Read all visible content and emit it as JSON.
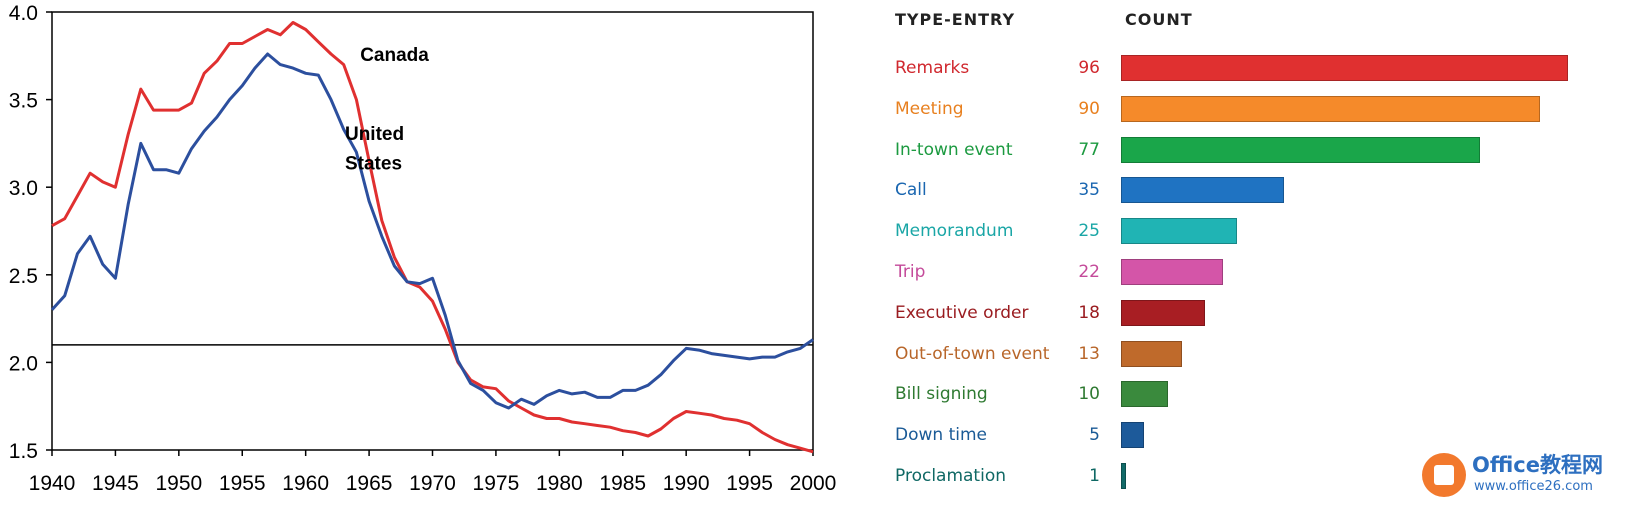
{
  "chart_data": [
    {
      "type": "line",
      "title": "",
      "xlabel": "",
      "ylabel": "",
      "xlim": [
        1940,
        2000
      ],
      "ylim": [
        1.5,
        4.0
      ],
      "x_ticks": [
        "1940",
        "1945",
        "1950",
        "1955",
        "1960",
        "1965",
        "1970",
        "1975",
        "1980",
        "1985",
        "1990",
        "1995",
        "2000"
      ],
      "y_ticks": [
        "4.0",
        "3.5",
        "3.0",
        "2.5",
        "2.0",
        "1.5"
      ],
      "reference_line": 2.1,
      "grid": false,
      "series": [
        {
          "name": "Canada",
          "color": "#e03030",
          "points": [
            [
              1940,
              2.78
            ],
            [
              1941,
              2.82
            ],
            [
              1942,
              2.95
            ],
            [
              1943,
              3.08
            ],
            [
              1944,
              3.03
            ],
            [
              1945,
              3.0
            ],
            [
              1946,
              3.3
            ],
            [
              1947,
              3.56
            ],
            [
              1948,
              3.44
            ],
            [
              1949,
              3.44
            ],
            [
              1950,
              3.44
            ],
            [
              1951,
              3.48
            ],
            [
              1952,
              3.65
            ],
            [
              1953,
              3.72
            ],
            [
              1954,
              3.82
            ],
            [
              1955,
              3.82
            ],
            [
              1956,
              3.86
            ],
            [
              1957,
              3.9
            ],
            [
              1958,
              3.87
            ],
            [
              1959,
              3.94
            ],
            [
              1960,
              3.9
            ],
            [
              1961,
              3.83
            ],
            [
              1962,
              3.76
            ],
            [
              1963,
              3.7
            ],
            [
              1964,
              3.5
            ],
            [
              1965,
              3.15
            ],
            [
              1966,
              2.81
            ],
            [
              1967,
              2.6
            ],
            [
              1968,
              2.46
            ],
            [
              1969,
              2.43
            ],
            [
              1970,
              2.35
            ],
            [
              1971,
              2.19
            ],
            [
              1972,
              2.0
            ],
            [
              1973,
              1.9
            ],
            [
              1974,
              1.86
            ],
            [
              1975,
              1.85
            ],
            [
              1976,
              1.78
            ],
            [
              1977,
              1.74
            ],
            [
              1978,
              1.7
            ],
            [
              1979,
              1.68
            ],
            [
              1980,
              1.68
            ],
            [
              1981,
              1.66
            ],
            [
              1982,
              1.65
            ],
            [
              1983,
              1.64
            ],
            [
              1984,
              1.63
            ],
            [
              1985,
              1.61
            ],
            [
              1986,
              1.6
            ],
            [
              1987,
              1.58
            ],
            [
              1988,
              1.62
            ],
            [
              1989,
              1.68
            ],
            [
              1990,
              1.72
            ],
            [
              1991,
              1.71
            ],
            [
              1992,
              1.7
            ],
            [
              1993,
              1.68
            ],
            [
              1994,
              1.67
            ],
            [
              1995,
              1.65
            ],
            [
              1996,
              1.6
            ],
            [
              1997,
              1.56
            ],
            [
              1998,
              1.53
            ],
            [
              1999,
              1.51
            ],
            [
              2000,
              1.49
            ]
          ]
        },
        {
          "name": "United States",
          "color": "#2c4f9e",
          "points": [
            [
              1940,
              2.3
            ],
            [
              1941,
              2.38
            ],
            [
              1942,
              2.62
            ],
            [
              1943,
              2.72
            ],
            [
              1944,
              2.56
            ],
            [
              1945,
              2.48
            ],
            [
              1946,
              2.9
            ],
            [
              1947,
              3.25
            ],
            [
              1948,
              3.1
            ],
            [
              1949,
              3.1
            ],
            [
              1950,
              3.08
            ],
            [
              1951,
              3.22
            ],
            [
              1952,
              3.32
            ],
            [
              1953,
              3.4
            ],
            [
              1954,
              3.5
            ],
            [
              1955,
              3.58
            ],
            [
              1956,
              3.68
            ],
            [
              1957,
              3.76
            ],
            [
              1958,
              3.7
            ],
            [
              1959,
              3.68
            ],
            [
              1960,
              3.65
            ],
            [
              1961,
              3.64
            ],
            [
              1962,
              3.5
            ],
            [
              1963,
              3.33
            ],
            [
              1964,
              3.2
            ],
            [
              1965,
              2.92
            ],
            [
              1966,
              2.72
            ],
            [
              1967,
              2.55
            ],
            [
              1968,
              2.46
            ],
            [
              1969,
              2.45
            ],
            [
              1970,
              2.48
            ],
            [
              1971,
              2.27
            ],
            [
              1972,
              2.01
            ],
            [
              1973,
              1.88
            ],
            [
              1974,
              1.84
            ],
            [
              1975,
              1.77
            ],
            [
              1976,
              1.74
            ],
            [
              1977,
              1.79
            ],
            [
              1978,
              1.76
            ],
            [
              1979,
              1.81
            ],
            [
              1980,
              1.84
            ],
            [
              1981,
              1.82
            ],
            [
              1982,
              1.83
            ],
            [
              1983,
              1.8
            ],
            [
              1984,
              1.8
            ],
            [
              1985,
              1.84
            ],
            [
              1986,
              1.84
            ],
            [
              1987,
              1.87
            ],
            [
              1988,
              1.93
            ],
            [
              1989,
              2.01
            ],
            [
              1990,
              2.08
            ],
            [
              1991,
              2.07
            ],
            [
              1992,
              2.05
            ],
            [
              1993,
              2.04
            ],
            [
              1994,
              2.03
            ],
            [
              1995,
              2.02
            ],
            [
              1996,
              2.03
            ],
            [
              1997,
              2.03
            ],
            [
              1998,
              2.06
            ],
            [
              1999,
              2.08
            ],
            [
              2000,
              2.13
            ]
          ]
        }
      ],
      "annotations": [
        {
          "text": "Canada",
          "x": 1964.3,
          "y": 3.72
        },
        {
          "text": "United",
          "x": 1963.1,
          "y": 3.27
        },
        {
          "text": "States",
          "x": 1963.1,
          "y": 3.1
        }
      ]
    },
    {
      "type": "bar",
      "orientation": "horizontal",
      "column_headers": {
        "label": "TYPE-ENTRY",
        "value": "COUNT"
      },
      "categories": [
        "Remarks",
        "Meeting",
        "In-town event",
        "Call",
        "Memorandum",
        "Trip",
        "Executive order",
        "Out-of-town event",
        "Bill signing",
        "Down time",
        "Proclamation"
      ],
      "values": [
        96,
        90,
        77,
        35,
        25,
        22,
        18,
        13,
        10,
        5,
        1
      ],
      "colors": [
        "#e03030",
        "#f58a2a",
        "#1aa64a",
        "#1f73c2",
        "#20b4b4",
        "#d455a8",
        "#a81e23",
        "#bf6a2b",
        "#3a8a3d",
        "#1d5a9a",
        "#126a68"
      ],
      "label_colors": [
        "#d0282e",
        "#e8801f",
        "#1c9a40",
        "#1a66b0",
        "#1aa6a6",
        "#c44a9a",
        "#9a1c20",
        "#b8662a",
        "#2f7a32",
        "#1a5a96",
        "#0f6864"
      ],
      "xlim": [
        0,
        96
      ]
    }
  ],
  "watermark": {
    "title": "Office教程网",
    "url": "www.office26.com",
    "logo_color": "#f2792d",
    "text_color": "#2d6fc0"
  }
}
